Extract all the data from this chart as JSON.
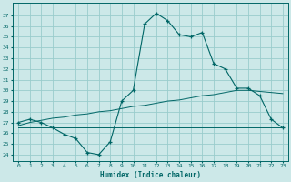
{
  "xlabel": "Humidex (Indice chaleur)",
  "bg_color": "#cce8e8",
  "grid_color": "#99cccc",
  "line_color": "#006666",
  "x_ticks": [
    0,
    1,
    2,
    3,
    4,
    5,
    6,
    7,
    8,
    9,
    10,
    11,
    12,
    13,
    14,
    15,
    16,
    17,
    18,
    19,
    20,
    21,
    22,
    23
  ],
  "y_ticks": [
    24,
    25,
    26,
    27,
    28,
    29,
    30,
    31,
    32,
    33,
    34,
    35,
    36,
    37
  ],
  "ylim": [
    23.4,
    38.2
  ],
  "xlim": [
    -0.5,
    23.5
  ],
  "curve1_x": [
    0,
    1,
    2,
    3,
    4,
    5,
    6,
    7,
    8,
    9,
    10,
    11,
    12,
    13,
    14,
    15,
    16,
    17,
    18,
    19,
    20,
    21,
    22,
    23
  ],
  "curve1_y": [
    27.0,
    27.3,
    27.0,
    26.5,
    25.9,
    25.5,
    24.2,
    24.0,
    25.2,
    29.0,
    30.0,
    36.2,
    37.2,
    36.5,
    35.2,
    35.0,
    35.4,
    32.5,
    32.0,
    30.2,
    30.2,
    29.5,
    27.3,
    26.5
  ],
  "curve2_x": [
    0,
    1,
    2,
    3,
    4,
    5,
    6,
    7,
    8,
    9,
    10,
    11,
    12,
    13,
    14,
    15,
    16,
    17,
    18,
    19,
    20,
    21,
    22,
    23
  ],
  "curve2_y": [
    26.5,
    26.5,
    26.5,
    26.5,
    26.5,
    26.5,
    26.5,
    26.5,
    26.5,
    26.5,
    26.5,
    26.5,
    26.5,
    26.5,
    26.5,
    26.5,
    26.5,
    26.5,
    26.5,
    26.5,
    26.5,
    26.5,
    26.5,
    26.5
  ],
  "curve3_x": [
    0,
    1,
    2,
    3,
    4,
    5,
    6,
    7,
    8,
    9,
    10,
    11,
    12,
    13,
    14,
    15,
    16,
    17,
    18,
    19,
    20,
    21,
    22,
    23
  ],
  "curve3_y": [
    26.7,
    27.0,
    27.2,
    27.4,
    27.5,
    27.7,
    27.8,
    28.0,
    28.1,
    28.3,
    28.5,
    28.6,
    28.8,
    29.0,
    29.1,
    29.3,
    29.5,
    29.6,
    29.8,
    30.0,
    30.0,
    29.9,
    29.8,
    29.7
  ]
}
